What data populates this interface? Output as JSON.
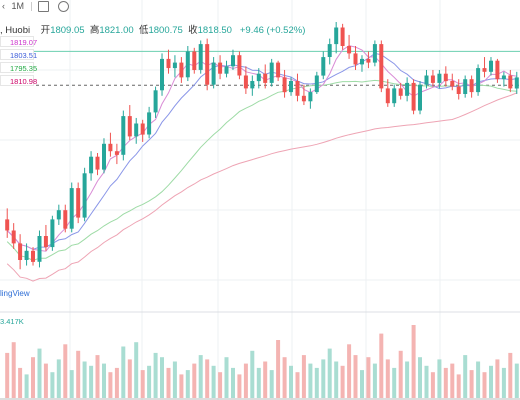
{
  "toolbar": {
    "interval": "1M",
    "icons": [
      "chart-type-icon",
      "settings-icon"
    ]
  },
  "ohlc": {
    "symbol": ", Huobi",
    "open_label": "开",
    "open": "1809.05",
    "high_label": "高",
    "high": "1821.00",
    "low_label": "低",
    "low": "1800.75",
    "close_label": "收",
    "close": "1818.50",
    "change": "+9.46 (+0.52%)"
  },
  "ma_values": [
    {
      "value": "1819.07",
      "color": "#cc33cc"
    },
    {
      "value": "1803.51",
      "color": "#3b5bd9"
    },
    {
      "value": "1795.35",
      "color": "#22aa44"
    },
    {
      "value": "1810.98",
      "color": "#cc0066"
    }
  ],
  "watermark": "lingView",
  "volume_label": "3.417K",
  "colors": {
    "up": "#26a69a",
    "down": "#ef5350",
    "up_vol": "#a9ddd2",
    "down_vol": "#f4b4b2",
    "ma1": "#d98cd6",
    "ma2": "#8a96e8",
    "ma3": "#9edba6",
    "ma4": "#eea4b4",
    "hline_green": "#6ccfb0",
    "hline_dash": "#666666",
    "grid": "#eef0f3"
  },
  "chart_data": {
    "type": "candlestick",
    "price_range": [
      1680,
      1835
    ],
    "reference_lines": {
      "last_price": 1819.07,
      "dashed": 1800.75
    },
    "candles": [
      [
        1728,
        1734,
        1718,
        1722
      ],
      [
        1722,
        1726,
        1712,
        1715
      ],
      [
        1715,
        1720,
        1701,
        1706
      ],
      [
        1706,
        1715,
        1703,
        1711
      ],
      [
        1711,
        1713,
        1703,
        1705
      ],
      [
        1705,
        1722,
        1702,
        1719
      ],
      [
        1719,
        1725,
        1711,
        1713
      ],
      [
        1713,
        1730,
        1711,
        1728
      ],
      [
        1728,
        1736,
        1725,
        1733
      ],
      [
        1733,
        1736,
        1721,
        1723
      ],
      [
        1723,
        1748,
        1721,
        1745
      ],
      [
        1745,
        1748,
        1726,
        1729
      ],
      [
        1729,
        1756,
        1727,
        1753
      ],
      [
        1753,
        1765,
        1749,
        1762
      ],
      [
        1762,
        1764,
        1752,
        1755
      ],
      [
        1755,
        1772,
        1753,
        1769
      ],
      [
        1769,
        1775,
        1762,
        1765
      ],
      [
        1765,
        1769,
        1758,
        1763
      ],
      [
        1763,
        1787,
        1760,
        1784
      ],
      [
        1784,
        1790,
        1771,
        1773
      ],
      [
        1773,
        1783,
        1769,
        1780
      ],
      [
        1780,
        1782,
        1770,
        1774
      ],
      [
        1774,
        1789,
        1772,
        1786
      ],
      [
        1786,
        1800,
        1783,
        1798
      ],
      [
        1798,
        1818,
        1795,
        1815
      ],
      [
        1815,
        1820,
        1807,
        1810
      ],
      [
        1810,
        1817,
        1805,
        1813
      ],
      [
        1813,
        1816,
        1802,
        1805
      ],
      [
        1805,
        1822,
        1803,
        1819
      ],
      [
        1819,
        1821,
        1807,
        1809
      ],
      [
        1809,
        1825,
        1807,
        1823
      ],
      [
        1823,
        1826,
        1798,
        1801
      ],
      [
        1801,
        1816,
        1799,
        1813
      ],
      [
        1813,
        1817,
        1804,
        1807
      ],
      [
        1807,
        1814,
        1805,
        1811
      ],
      [
        1811,
        1820,
        1809,
        1817
      ],
      [
        1817,
        1819,
        1804,
        1806
      ],
      [
        1806,
        1811,
        1796,
        1799
      ],
      [
        1799,
        1806,
        1795,
        1803
      ],
      [
        1803,
        1810,
        1799,
        1807
      ],
      [
        1807,
        1812,
        1799,
        1802
      ],
      [
        1802,
        1815,
        1800,
        1813
      ],
      [
        1813,
        1814,
        1803,
        1805
      ],
      [
        1805,
        1809,
        1794,
        1797
      ],
      [
        1797,
        1805,
        1795,
        1803
      ],
      [
        1803,
        1807,
        1792,
        1795
      ],
      [
        1795,
        1801,
        1790,
        1792
      ],
      [
        1792,
        1799,
        1788,
        1797
      ],
      [
        1797,
        1808,
        1796,
        1806
      ],
      [
        1806,
        1819,
        1804,
        1816
      ],
      [
        1816,
        1826,
        1812,
        1823
      ],
      [
        1823,
        1835,
        1818,
        1832
      ],
      [
        1832,
        1834,
        1820,
        1822
      ],
      [
        1822,
        1828,
        1815,
        1818
      ],
      [
        1818,
        1822,
        1809,
        1812
      ],
      [
        1812,
        1817,
        1808,
        1815
      ],
      [
        1815,
        1819,
        1810,
        1813
      ],
      [
        1813,
        1825,
        1811,
        1823
      ],
      [
        1823,
        1825,
        1797,
        1799
      ],
      [
        1799,
        1804,
        1789,
        1791
      ],
      [
        1791,
        1801,
        1789,
        1799
      ],
      [
        1799,
        1802,
        1793,
        1795
      ],
      [
        1795,
        1805,
        1792,
        1802
      ],
      [
        1802,
        1804,
        1785,
        1787
      ],
      [
        1787,
        1803,
        1785,
        1801
      ],
      [
        1801,
        1809,
        1799,
        1806
      ],
      [
        1806,
        1809,
        1800,
        1802
      ],
      [
        1802,
        1809,
        1799,
        1807
      ],
      [
        1807,
        1811,
        1800,
        1803
      ],
      [
        1803,
        1807,
        1798,
        1800
      ],
      [
        1800,
        1804,
        1793,
        1796
      ],
      [
        1796,
        1806,
        1794,
        1804
      ],
      [
        1804,
        1806,
        1794,
        1797
      ],
      [
        1797,
        1812,
        1795,
        1810
      ],
      [
        1810,
        1816,
        1805,
        1808
      ],
      [
        1808,
        1816,
        1806,
        1814
      ],
      [
        1814,
        1815,
        1802,
        1804
      ],
      [
        1804,
        1808,
        1800,
        1806
      ],
      [
        1806,
        1809,
        1797,
        1799
      ],
      [
        1799,
        1808,
        1796,
        1805
      ]
    ],
    "volumes": [
      2.1,
      2.6,
      1.4,
      1.1,
      1.9,
      2.3,
      1.6,
      1.2,
      1.8,
      2.5,
      1.3,
      2.2,
      1.7,
      1.5,
      2.0,
      1.6,
      1.2,
      1.4,
      2.4,
      1.8,
      2.6,
      1.3,
      1.5,
      2.1,
      1.9,
      1.4,
      1.7,
      1.1,
      1.3,
      1.6,
      2.0,
      1.8,
      1.5,
      1.2,
      1.9,
      1.4,
      1.1,
      1.6,
      2.2,
      1.4,
      1.7,
      1.3,
      2.7,
      1.9,
      1.5,
      1.2,
      2.0,
      1.6,
      1.4,
      1.8,
      2.3,
      1.7,
      1.5,
      2.5,
      2.0,
      1.3,
      1.9,
      1.6,
      3.0,
      1.8,
      1.4,
      2.2,
      1.7,
      3.4,
      1.9,
      1.5,
      1.2,
      1.8,
      1.4,
      1.6,
      1.1,
      2.0,
      1.3,
      1.7,
      1.2,
      1.5,
      1.8,
      1.4,
      2.1,
      1.6
    ]
  }
}
